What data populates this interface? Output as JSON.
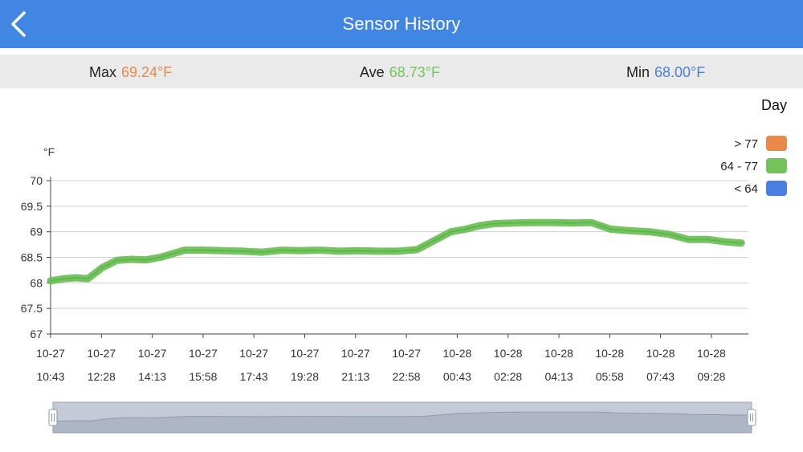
{
  "header": {
    "title": "Sensor History",
    "back_icon": "chevron-left-icon"
  },
  "stats": {
    "max_label": "Max",
    "max_value": "69.24°F",
    "ave_label": "Ave",
    "ave_value": "68.73°F",
    "min_label": "Min",
    "min_value": "68.00°F"
  },
  "range_label": "Day",
  "legend": [
    {
      "label": "> 77",
      "color": "#e8894a"
    },
    {
      "label": "64 - 77",
      "color": "#73c35a"
    },
    {
      "label": "< 64",
      "color": "#4a7ee0"
    }
  ],
  "colors": {
    "header": "#4286e3",
    "max": "#e8894a",
    "ave": "#73c35a",
    "min": "#4a7ee0",
    "line": "#6fc05a"
  },
  "chart_data": {
    "type": "line",
    "ylabel": "°F",
    "ylim": [
      67,
      70
    ],
    "yticks": [
      "70",
      "69.5",
      "69",
      "68.5",
      "68",
      "67.5",
      "67"
    ],
    "xticks": [
      [
        "10-27",
        "10:43"
      ],
      [
        "10-27",
        "12:28"
      ],
      [
        "10-27",
        "14:13"
      ],
      [
        "10-27",
        "15:58"
      ],
      [
        "10-27",
        "17:43"
      ],
      [
        "10-27",
        "19:28"
      ],
      [
        "10-27",
        "21:13"
      ],
      [
        "10-27",
        "22:58"
      ],
      [
        "10-28",
        "00:43"
      ],
      [
        "10-28",
        "02:28"
      ],
      [
        "10-28",
        "04:13"
      ],
      [
        "10-28",
        "05:58"
      ],
      [
        "10-28",
        "07:43"
      ],
      [
        "10-28",
        "09:28"
      ]
    ],
    "grid": true,
    "series": [
      {
        "x": [
          "10-27 10:43",
          "10-27 11:10",
          "10-27 11:35",
          "10-27 12:00",
          "10-27 12:30",
          "10-27 13:00",
          "10-27 13:30",
          "10-27 14:00",
          "10-27 14:30",
          "10-27 15:20",
          "10-27 16:00",
          "10-27 16:40",
          "10-27 17:20",
          "10-27 18:00",
          "10-27 18:40",
          "10-27 19:20",
          "10-27 20:00",
          "10-27 20:40",
          "10-27 21:20",
          "10-27 22:00",
          "10-27 22:40",
          "10-27 23:20",
          "10-28 00:00",
          "10-28 00:30",
          "10-28 01:00",
          "10-28 01:30",
          "10-28 02:00",
          "10-28 02:40",
          "10-28 03:20",
          "10-28 04:00",
          "10-28 04:40",
          "10-28 05:20",
          "10-28 06:00",
          "10-28 06:40",
          "10-28 07:20",
          "10-28 08:00",
          "10-28 08:40",
          "10-28 09:20",
          "10-28 10:00",
          "10-28 10:30"
        ],
        "values": [
          68.04,
          68.08,
          68.1,
          68.08,
          68.3,
          68.44,
          68.46,
          68.45,
          68.5,
          68.64,
          68.64,
          68.63,
          68.62,
          68.6,
          68.64,
          68.63,
          68.64,
          68.62,
          68.63,
          68.62,
          68.62,
          68.65,
          68.85,
          69.0,
          69.05,
          69.12,
          69.16,
          69.17,
          69.18,
          69.18,
          69.17,
          69.18,
          69.05,
          69.02,
          69.0,
          68.95,
          68.85,
          68.85,
          68.8,
          68.78
        ]
      }
    ]
  }
}
